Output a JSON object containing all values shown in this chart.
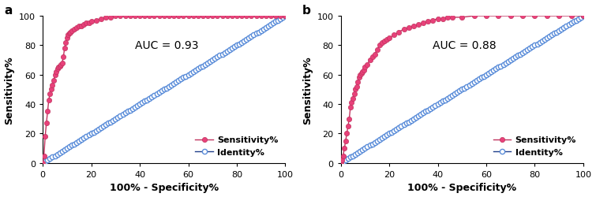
{
  "panel_a": {
    "label": "a",
    "auc_text": "AUC = 0.93",
    "roc_x": [
      0,
      0.5,
      1,
      1.5,
      2,
      2.5,
      3,
      3.5,
      4,
      4.5,
      5,
      5.5,
      6,
      6.5,
      7,
      7.5,
      8,
      8.5,
      9,
      9.5,
      10,
      10.5,
      11,
      11.5,
      12,
      13,
      14,
      15,
      16,
      17,
      18,
      19,
      20,
      22,
      24,
      26,
      28,
      30,
      32,
      34,
      36,
      38,
      40,
      42,
      44,
      46,
      48,
      50,
      52,
      54,
      56,
      58,
      60,
      62,
      64,
      66,
      68,
      70,
      72,
      74,
      76,
      78,
      80,
      82,
      84,
      86,
      88,
      90,
      92,
      94,
      96,
      98,
      100
    ],
    "roc_y": [
      0,
      5,
      18,
      27,
      35,
      43,
      47,
      50,
      53,
      56,
      60,
      62,
      64,
      65,
      66,
      67,
      68,
      72,
      78,
      82,
      85,
      87,
      88,
      89,
      90,
      91,
      92,
      93,
      93,
      94,
      95,
      95,
      96,
      97,
      98,
      99,
      99,
      100,
      100,
      100,
      100,
      100,
      100,
      100,
      100,
      100,
      100,
      100,
      100,
      100,
      100,
      100,
      100,
      100,
      100,
      100,
      100,
      100,
      100,
      100,
      100,
      100,
      100,
      100,
      100,
      100,
      100,
      100,
      100,
      100,
      100,
      100,
      100
    ]
  },
  "panel_b": {
    "label": "b",
    "auc_text": "AUC = 0.88",
    "roc_x": [
      0,
      0.5,
      1,
      1.5,
      2,
      2.5,
      3,
      3.5,
      4,
      4.5,
      5,
      5.5,
      6,
      6.5,
      7,
      7.5,
      8,
      8.5,
      9,
      9.5,
      10,
      11,
      12,
      13,
      14,
      15,
      16,
      17,
      18,
      19,
      20,
      22,
      24,
      26,
      28,
      30,
      32,
      34,
      36,
      38,
      40,
      42,
      44,
      46,
      50,
      55,
      60,
      65,
      70,
      75,
      80,
      85,
      90,
      95,
      100
    ],
    "roc_y": [
      0,
      2,
      5,
      10,
      15,
      20,
      25,
      30,
      38,
      41,
      44,
      47,
      50,
      52,
      55,
      58,
      60,
      61,
      62,
      63,
      65,
      67,
      70,
      72,
      74,
      77,
      80,
      82,
      83,
      84,
      85,
      87,
      89,
      91,
      92,
      93,
      94,
      95,
      96,
      97,
      98,
      98,
      99,
      99,
      99,
      100,
      100,
      100,
      100,
      100,
      100,
      100,
      100,
      100,
      100
    ]
  },
  "identity_x": [
    0,
    1,
    2,
    3,
    4,
    5,
    6,
    7,
    8,
    9,
    10,
    11,
    12,
    13,
    14,
    15,
    16,
    17,
    18,
    19,
    20,
    21,
    22,
    23,
    24,
    25,
    26,
    27,
    28,
    29,
    30,
    31,
    32,
    33,
    34,
    35,
    36,
    37,
    38,
    39,
    40,
    41,
    42,
    43,
    44,
    45,
    46,
    47,
    48,
    49,
    50,
    51,
    52,
    53,
    54,
    55,
    56,
    57,
    58,
    59,
    60,
    61,
    62,
    63,
    64,
    65,
    66,
    67,
    68,
    69,
    70,
    71,
    72,
    73,
    74,
    75,
    76,
    77,
    78,
    79,
    80,
    81,
    82,
    83,
    84,
    85,
    86,
    87,
    88,
    89,
    90,
    91,
    92,
    93,
    94,
    95,
    96,
    97,
    98,
    99,
    100
  ],
  "pink_color": "#E8417A",
  "pink_edge_color": "#C0335E",
  "blue_color": "#5B8DD9",
  "blue_edge_color": "#2A52A0",
  "line_color_blue": "#1F3F8A",
  "bg_color": "#FFFFFF",
  "xlabel": "100% - Specificity%",
  "ylabel": "Sensitivity%",
  "xlim": [
    0,
    100
  ],
  "ylim": [
    0,
    100
  ],
  "xticks": [
    0,
    20,
    40,
    60,
    80,
    100
  ],
  "yticks": [
    0,
    20,
    40,
    60,
    80,
    100
  ],
  "legend_sensitivity": "Sensitivity%",
  "legend_identity": "Identity%",
  "marker_size_roc": 4.5,
  "marker_size_id": 4.5,
  "linewidth": 1.0,
  "font_size_tick": 8,
  "font_size_label": 9,
  "font_size_auc": 10,
  "font_size_legend": 8,
  "font_size_panel": 11
}
